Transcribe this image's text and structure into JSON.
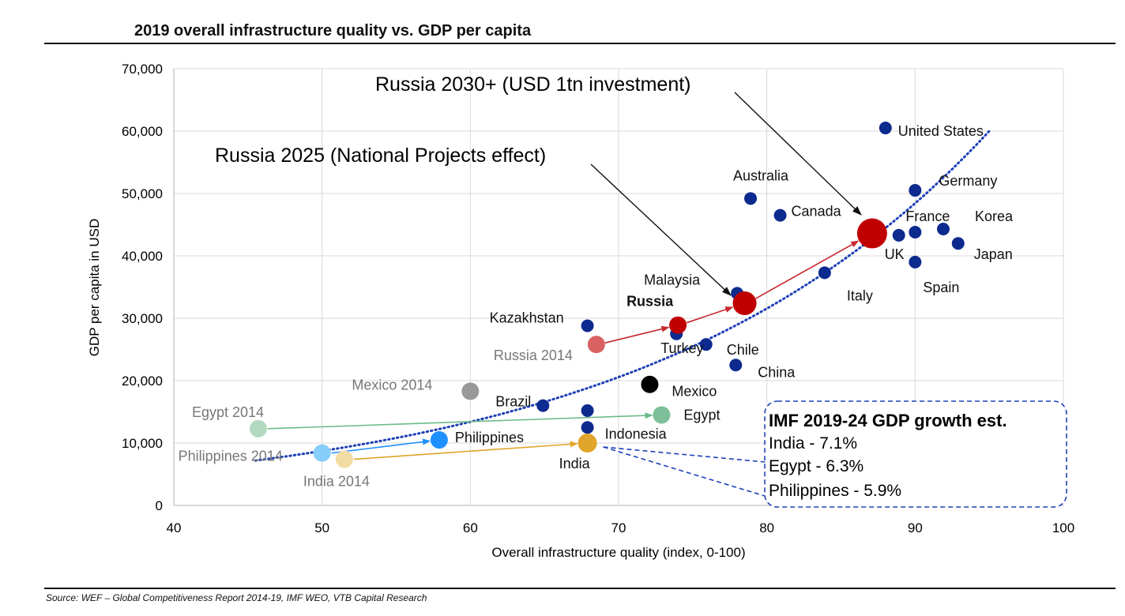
{
  "header": {
    "title": "2019 overall infrastructure quality vs. GDP per capita"
  },
  "footer": {
    "source": "Source: WEF – Global Competitiveness Report 2014-19, IMF WEO, VTB Capital Research"
  },
  "chart_data": {
    "type": "scatter",
    "title": "2019 overall infrastructure quality vs. GDP per capita",
    "xlabel": "Overall infrastructure quality (index, 0-100)",
    "ylabel": "GDP per capita in USD",
    "xlim": [
      40,
      100
    ],
    "ylim": [
      0,
      70000
    ],
    "x_ticks": [
      40,
      50,
      60,
      70,
      80,
      90,
      100
    ],
    "y_ticks": [
      0,
      10000,
      20000,
      30000,
      40000,
      50000,
      60000,
      70000
    ],
    "y_tick_labels": [
      "0",
      "10,000",
      "20,000",
      "30,000",
      "40,000",
      "50,000",
      "60,000",
      "70,000"
    ],
    "grid": true,
    "colors": {
      "country": "#0d2a8f",
      "russia": "#c00000",
      "russia_2014": "#d96262",
      "mexico": "#000000",
      "mexico_2014": "#999999",
      "egypt": "#7dbf98",
      "egypt_2014": "#b3d9c1",
      "philippines": "#1e90ff",
      "philippines_2014": "#87cefa",
      "india": "#e0a52a",
      "india_2014": "#f2dca4",
      "trend": "#1e40b8",
      "red_arrow": "#c8282e",
      "green_arrow": "#6dbb8a",
      "blue_arrow": "#1e90ff",
      "gold_arrow": "#e0a52a"
    },
    "points": [
      {
        "label": "United States",
        "x": 88.0,
        "y": 60500,
        "style": "country"
      },
      {
        "label": "Germany",
        "x": 90.0,
        "y": 50500,
        "style": "country"
      },
      {
        "label": "France",
        "x": 90.0,
        "y": 43800,
        "style": "country"
      },
      {
        "label": "Korea",
        "x": 91.9,
        "y": 44300,
        "style": "country"
      },
      {
        "label": "Japan",
        "x": 92.9,
        "y": 42000,
        "style": "country"
      },
      {
        "label": "UK",
        "x": 88.9,
        "y": 43300,
        "style": "country"
      },
      {
        "label": "Spain",
        "x": 90.0,
        "y": 39000,
        "style": "country"
      },
      {
        "label": "Italy",
        "x": 83.9,
        "y": 37300,
        "style": "country"
      },
      {
        "label": "Australia",
        "x": 78.9,
        "y": 49200,
        "style": "country"
      },
      {
        "label": "Canada",
        "x": 80.9,
        "y": 46500,
        "style": "country"
      },
      {
        "label": "Malaysia",
        "x": 78.0,
        "y": 34000,
        "style": "country"
      },
      {
        "label": "Kazakhstan",
        "x": 67.9,
        "y": 28800,
        "style": "country"
      },
      {
        "label": "Turkey",
        "x": 73.9,
        "y": 27500,
        "style": "country"
      },
      {
        "label": "Chile",
        "x": 75.9,
        "y": 25800,
        "style": "country"
      },
      {
        "label": "China",
        "x": 77.9,
        "y": 22500,
        "style": "country"
      },
      {
        "label": "Brazil",
        "x": 64.9,
        "y": 16000,
        "style": "country"
      },
      {
        "label": "Indonesia",
        "x": 67.9,
        "y": 12500,
        "style": "country"
      },
      {
        "label": "",
        "x": 67.9,
        "y": 15200,
        "style": "country"
      },
      {
        "label": "Russia",
        "x": 74.0,
        "y": 28900,
        "style": "russia"
      },
      {
        "label": "Russia 2014",
        "x": 68.5,
        "y": 25800,
        "style": "russia_2014"
      },
      {
        "label": "",
        "x": 78.5,
        "y": 32400,
        "style": "russia_big"
      },
      {
        "label": "",
        "x": 87.1,
        "y": 43600,
        "style": "russia_biggest"
      },
      {
        "label": "Mexico",
        "x": 72.1,
        "y": 19400,
        "style": "mexico"
      },
      {
        "label": "Mexico 2014",
        "x": 60.0,
        "y": 18300,
        "style": "mexico_2014"
      },
      {
        "label": "Egypt",
        "x": 72.9,
        "y": 14500,
        "style": "egypt"
      },
      {
        "label": "Egypt 2014",
        "x": 45.7,
        "y": 12300,
        "style": "egypt_2014"
      },
      {
        "label": "Philippines",
        "x": 57.9,
        "y": 10500,
        "style": "philippines"
      },
      {
        "label": "Philippines  2014",
        "x": 50.0,
        "y": 8400,
        "style": "philippines_2014"
      },
      {
        "label": "India",
        "x": 67.9,
        "y": 10000,
        "style": "india"
      },
      {
        "label": "India  2014",
        "x": 51.5,
        "y": 7400,
        "style": "india_2014"
      }
    ],
    "trendline": {
      "x_start": 45.5,
      "x_end": 95.0
    },
    "annotations": {
      "russia_2030": "Russia 2030+ (USD 1tn investment)",
      "russia_2025": "Russia 2025 (National Projects effect)"
    },
    "imf_box": {
      "title": "IMF 2019-24 GDP growth est.",
      "lines": [
        "India - 7.1%",
        "Egypt - 6.3%",
        "Philippines - 5.9%"
      ]
    }
  }
}
